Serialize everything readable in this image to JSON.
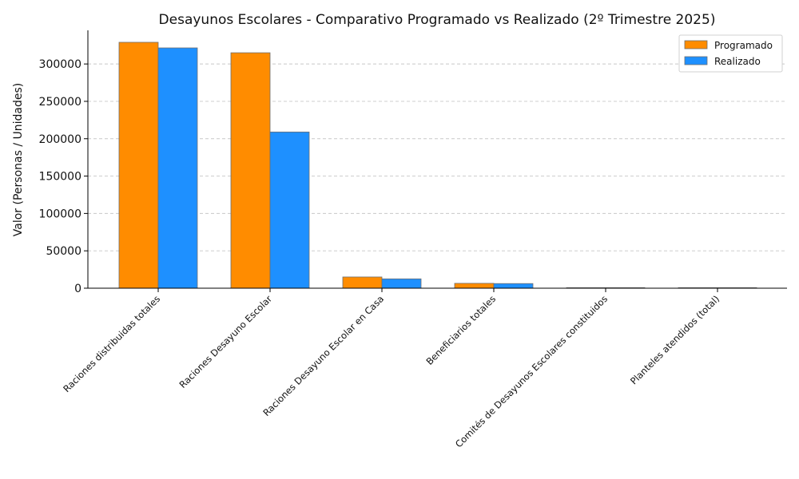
{
  "chart_data": {
    "type": "bar",
    "title": "Desayunos Escolares - Comparativo Programado vs Realizado (2º Trimestre 2025)",
    "xlabel": "",
    "ylabel": "Valor (Personas / Unidades)",
    "ylim": [
      0,
      345000
    ],
    "yticks": [
      0,
      50000,
      100000,
      150000,
      200000,
      250000,
      300000
    ],
    "grid": "y-dashed",
    "legend_position": "top-right",
    "categories": [
      "Raciones distribuidas totales",
      "Raciones Desayuno Escolar",
      "Raciones Desayuno Escolar en Casa",
      "Beneficiarios totales",
      "Comités de Desayunos Escolares constituidos",
      "Planteles atendidos (total)"
    ],
    "series": [
      {
        "name": "Programado",
        "color": "#ff8c00",
        "values": [
          329000,
          315000,
          15000,
          6500,
          150,
          150
        ]
      },
      {
        "name": "Realizado",
        "color": "#1e90ff",
        "values": [
          321500,
          209000,
          12500,
          6200,
          140,
          140
        ]
      }
    ]
  }
}
